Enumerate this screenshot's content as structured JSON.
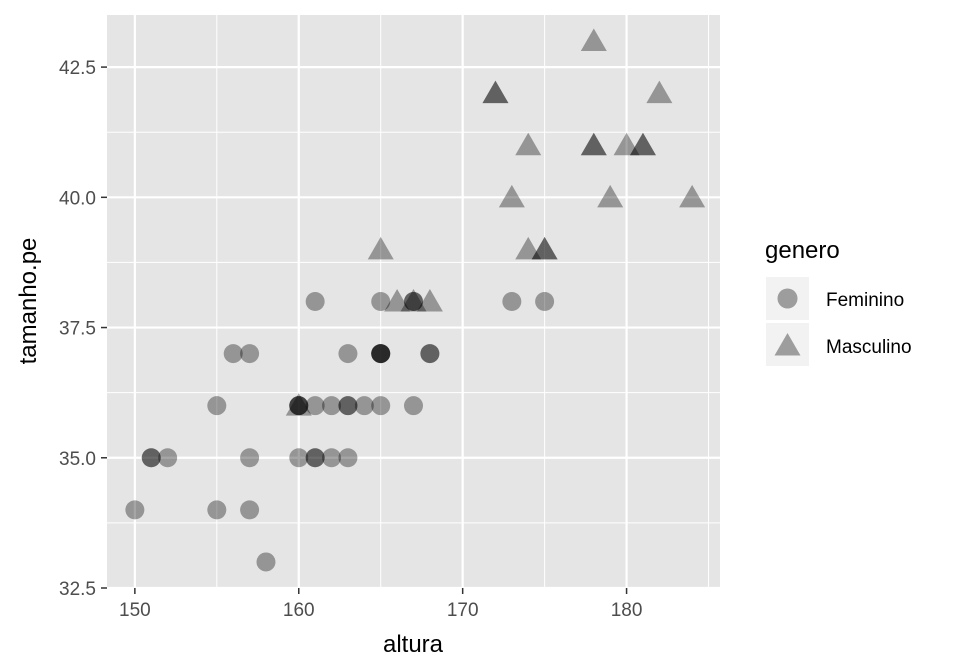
{
  "chart_data": {
    "type": "scatter",
    "title": "",
    "xlabel": "altura",
    "ylabel": "tamanho.pe",
    "xlim": [
      148.3,
      185.7
    ],
    "ylim": [
      32.5,
      43.5
    ],
    "x_ticks": [
      150,
      160,
      170,
      180
    ],
    "x_tick_labels": [
      "150",
      "160",
      "170",
      "180"
    ],
    "y_ticks": [
      32.5,
      35.0,
      37.5,
      40.0,
      42.5
    ],
    "y_tick_labels": [
      "32.5",
      "35.0",
      "37.5",
      "40.0",
      "42.5"
    ],
    "grid": true,
    "legend": {
      "title": "genero",
      "position": "right"
    },
    "point_alpha": 0.35,
    "series": [
      {
        "name": "Feminino",
        "marker": "circle",
        "points": [
          [
            150,
            34
          ],
          [
            151,
            35
          ],
          [
            151,
            35
          ],
          [
            152,
            35
          ],
          [
            155,
            36
          ],
          [
            155,
            34
          ],
          [
            156,
            37
          ],
          [
            157,
            37
          ],
          [
            157,
            35
          ],
          [
            157,
            34
          ],
          [
            158,
            33
          ],
          [
            160,
            36
          ],
          [
            160,
            36
          ],
          [
            160,
            36
          ],
          [
            160,
            35
          ],
          [
            161,
            38
          ],
          [
            161,
            36
          ],
          [
            161,
            35
          ],
          [
            161,
            35
          ],
          [
            162,
            36
          ],
          [
            162,
            35
          ],
          [
            163,
            37
          ],
          [
            163,
            36
          ],
          [
            163,
            36
          ],
          [
            163,
            35
          ],
          [
            164,
            36
          ],
          [
            165,
            38
          ],
          [
            165,
            37
          ],
          [
            165,
            37
          ],
          [
            165,
            37
          ],
          [
            165,
            37
          ],
          [
            165,
            36
          ],
          [
            167,
            38
          ],
          [
            167,
            38
          ],
          [
            167,
            36
          ],
          [
            168,
            37
          ],
          [
            168,
            37
          ],
          [
            173,
            38
          ],
          [
            175,
            38
          ]
        ]
      },
      {
        "name": "Masculino",
        "marker": "triangle",
        "points": [
          [
            160,
            36
          ],
          [
            165,
            39
          ],
          [
            166,
            38
          ],
          [
            167,
            38
          ],
          [
            168,
            38
          ],
          [
            172,
            42
          ],
          [
            172,
            42
          ],
          [
            173,
            40
          ],
          [
            174,
            41
          ],
          [
            174,
            39
          ],
          [
            175,
            39
          ],
          [
            175,
            39
          ],
          [
            178,
            43
          ],
          [
            178,
            41
          ],
          [
            178,
            41
          ],
          [
            179,
            40
          ],
          [
            180,
            41
          ],
          [
            181,
            41
          ],
          [
            181,
            41
          ],
          [
            182,
            42
          ],
          [
            184,
            40
          ]
        ]
      }
    ]
  },
  "colors": {
    "panel_background": "#e5e5e5",
    "grid_major": "#ffffff",
    "point": "#000000",
    "legend_key_background": "#f2f2f2"
  }
}
